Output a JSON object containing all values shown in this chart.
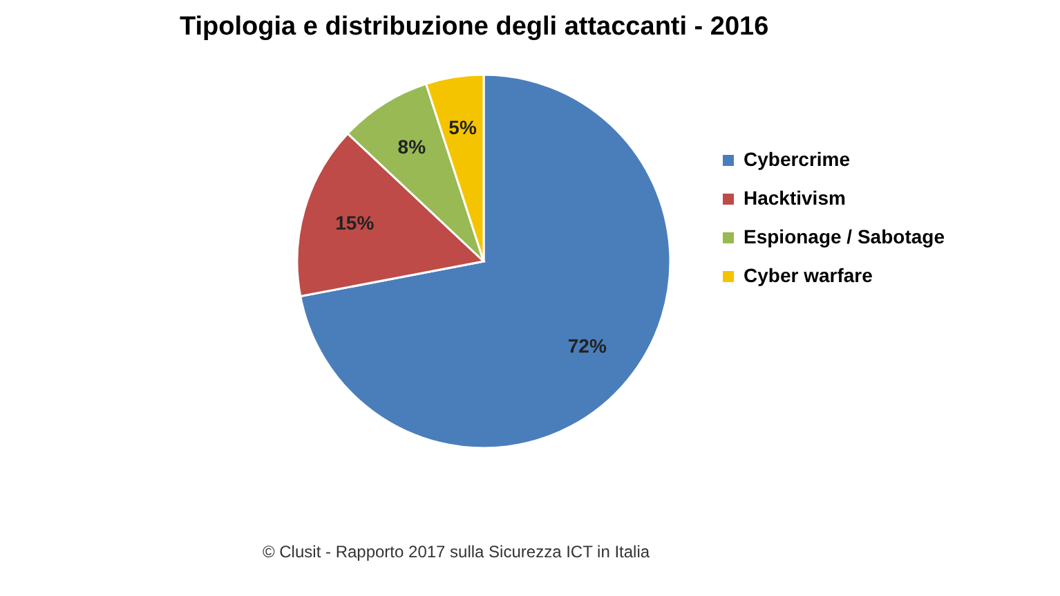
{
  "chart_data": {
    "type": "pie",
    "title": "Tipologia e distribuzione degli attaccanti -  2016",
    "categories": [
      "Cybercrime",
      "Hacktivism",
      "Espionage / Sabotage",
      "Cyber warfare"
    ],
    "values": [
      72,
      15,
      8,
      5
    ],
    "colors": [
      "#4a7ebb",
      "#be4b48",
      "#98b954",
      "#f5c400"
    ],
    "value_labels": [
      "72%",
      "15%",
      "8%",
      "5%"
    ],
    "legend": "right",
    "annotations": [
      "© Clusit - Rapporto 2017 sulla Sicurezza ICT in Italia"
    ]
  }
}
